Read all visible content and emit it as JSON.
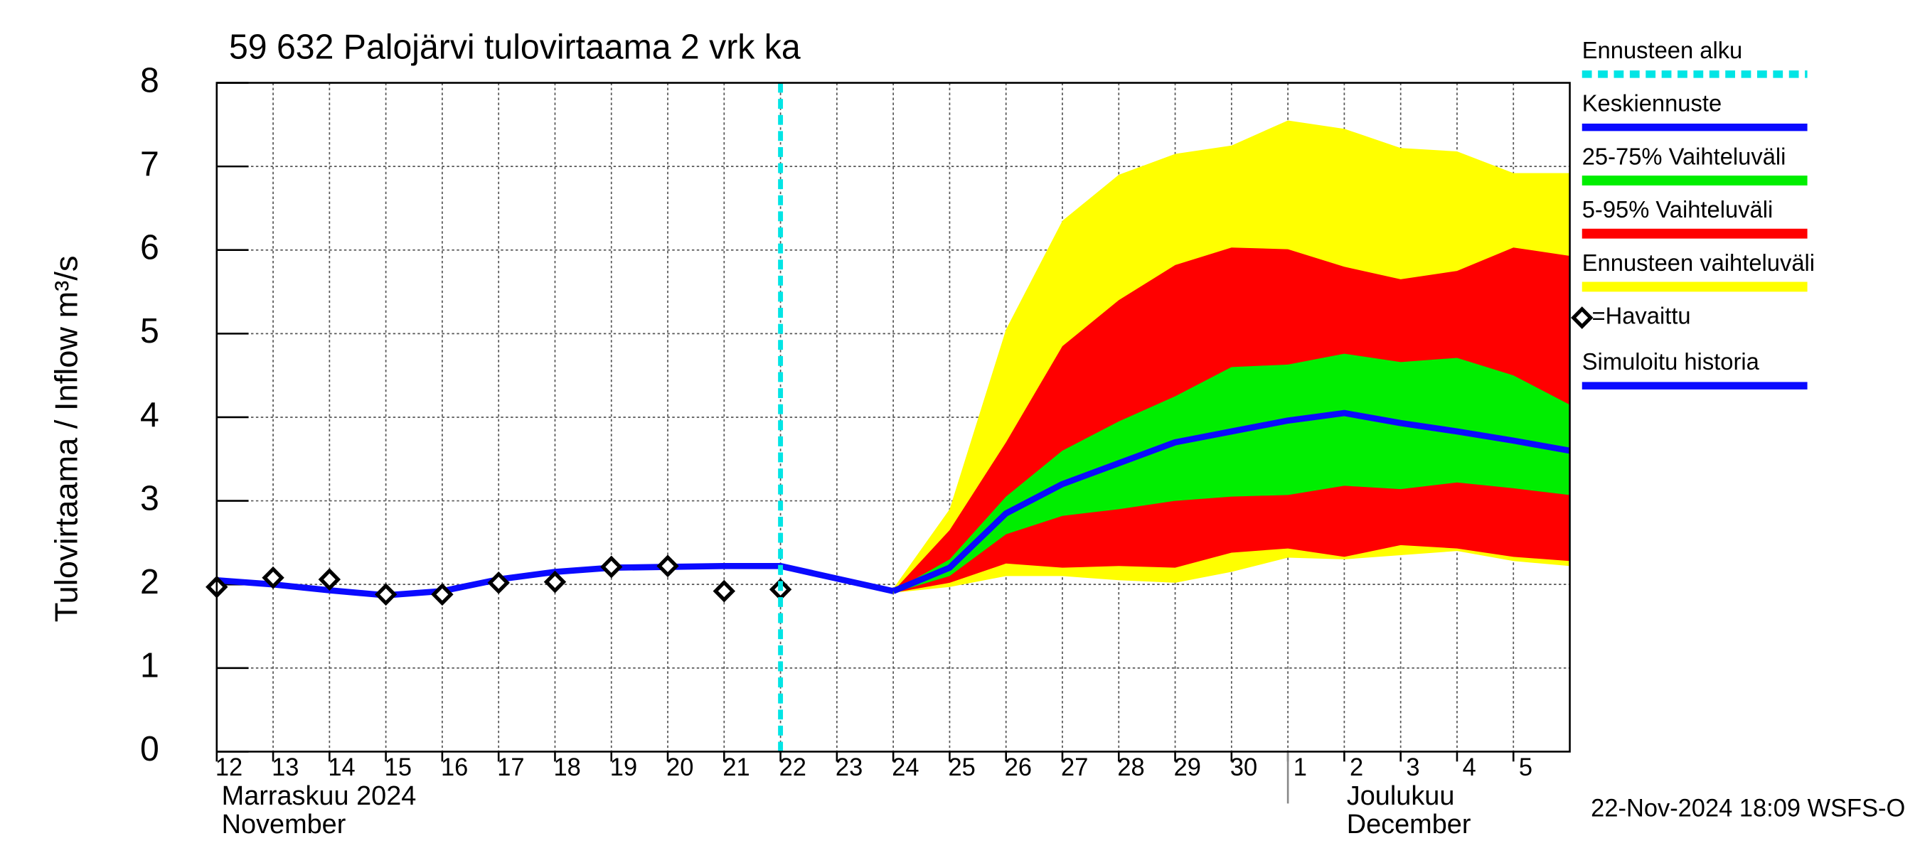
{
  "chart_data": {
    "type": "band-forecast",
    "title": "59 632 Palojärvi tulovirtaama 2 vrk ka",
    "y_label": "Tulovirtaama / Inflow   m³/s",
    "timestamp": "22-Nov-2024 18:09 WSFS-O",
    "x": [
      0,
      1,
      2,
      3,
      4,
      5,
      6,
      7,
      8,
      9,
      10,
      11,
      12,
      13,
      14,
      15,
      16,
      17,
      18,
      19,
      20,
      21,
      22,
      23,
      24
    ],
    "xlim": [
      0,
      24
    ],
    "xticks": [
      {
        "value": 0,
        "label": "12"
      },
      {
        "value": 1,
        "label": "13"
      },
      {
        "value": 2,
        "label": "14"
      },
      {
        "value": 3,
        "label": "15"
      },
      {
        "value": 4,
        "label": "16"
      },
      {
        "value": 5,
        "label": "17"
      },
      {
        "value": 6,
        "label": "18"
      },
      {
        "value": 7,
        "label": "19"
      },
      {
        "value": 8,
        "label": "20"
      },
      {
        "value": 9,
        "label": "21"
      },
      {
        "value": 10,
        "label": "22"
      },
      {
        "value": 11,
        "label": "23"
      },
      {
        "value": 12,
        "label": "24"
      },
      {
        "value": 13,
        "label": "25"
      },
      {
        "value": 14,
        "label": "26"
      },
      {
        "value": 15,
        "label": "27"
      },
      {
        "value": 16,
        "label": "28"
      },
      {
        "value": 17,
        "label": "29"
      },
      {
        "value": 18,
        "label": "30"
      },
      {
        "value": 19,
        "label": "1"
      },
      {
        "value": 20,
        "label": "2"
      },
      {
        "value": 21,
        "label": "3"
      },
      {
        "value": 22,
        "label": "4"
      },
      {
        "value": 23,
        "label": "5"
      }
    ],
    "months": [
      {
        "label": "Marraskuu 2024",
        "sublabel": "November",
        "x": 0
      },
      {
        "label": "Joulukuu",
        "sublabel": "December",
        "x": 19
      }
    ],
    "ylim": [
      0,
      8
    ],
    "yticks": [
      0,
      1,
      2,
      3,
      4,
      5,
      6,
      7,
      8
    ],
    "grid": true,
    "forecast_start": {
      "name": "Ennusteen alku",
      "x": 10,
      "color": "#00e5e5"
    },
    "series": [
      {
        "name": "Keskiennuste",
        "kind": "line",
        "color": "#0a0aff",
        "values": [
          null,
          null,
          null,
          null,
          null,
          null,
          null,
          null,
          null,
          null,
          null,
          null,
          1.92,
          2.2,
          2.85,
          3.2,
          3.45,
          3.7,
          3.83,
          3.96,
          4.05,
          3.93,
          3.83,
          3.72,
          3.6
        ]
      },
      {
        "name": "25-75% Vaihteluväli",
        "kind": "band",
        "color": "#00ee00",
        "lower": [
          null,
          null,
          null,
          null,
          null,
          null,
          null,
          null,
          null,
          null,
          null,
          null,
          1.9,
          2.1,
          2.6,
          2.82,
          2.9,
          3.0,
          3.05,
          3.07,
          3.18,
          3.14,
          3.22,
          3.15,
          3.07
        ],
        "upper": [
          null,
          null,
          null,
          null,
          null,
          null,
          null,
          null,
          null,
          null,
          null,
          null,
          1.92,
          2.3,
          3.05,
          3.6,
          3.95,
          4.25,
          4.6,
          4.63,
          4.76,
          4.66,
          4.71,
          4.5,
          4.15
        ]
      },
      {
        "name": "5-95% Vaihteluväli",
        "kind": "band",
        "color": "#ff0000",
        "lower": [
          null,
          null,
          null,
          null,
          null,
          null,
          null,
          null,
          null,
          null,
          null,
          null,
          1.9,
          2.02,
          2.25,
          2.2,
          2.22,
          2.2,
          2.38,
          2.43,
          2.33,
          2.47,
          2.43,
          2.33,
          2.28
        ],
        "upper": [
          null,
          null,
          null,
          null,
          null,
          null,
          null,
          null,
          null,
          null,
          null,
          null,
          1.92,
          2.65,
          3.7,
          4.85,
          5.4,
          5.82,
          6.03,
          6.01,
          5.8,
          5.65,
          5.75,
          6.03,
          5.93
        ]
      },
      {
        "name": "Ennusteen vaihteluväli",
        "kind": "band",
        "color": "#ffff00",
        "lower": [
          null,
          null,
          null,
          null,
          null,
          null,
          null,
          null,
          null,
          null,
          null,
          null,
          1.9,
          1.97,
          2.1,
          2.1,
          2.05,
          2.02,
          2.15,
          2.32,
          2.3,
          2.35,
          2.4,
          2.28,
          2.22
        ],
        "upper": [
          null,
          null,
          null,
          null,
          null,
          null,
          null,
          null,
          null,
          null,
          null,
          null,
          1.95,
          2.9,
          5.05,
          6.35,
          6.9,
          7.15,
          7.25,
          7.55,
          7.45,
          7.22,
          7.18,
          6.92,
          6.92
        ]
      },
      {
        "name": "=Havaittu",
        "kind": "marker",
        "color": "#000000",
        "values": [
          1.97,
          2.08,
          2.06,
          1.88,
          1.88,
          2.02,
          2.03,
          2.21,
          2.22,
          1.92,
          1.94,
          null,
          null,
          null,
          null,
          null,
          null,
          null,
          null,
          null,
          null,
          null,
          null,
          null,
          null
        ]
      },
      {
        "name": "Simuloitu historia",
        "kind": "line",
        "color": "#0a0aff",
        "values": [
          2.05,
          2.0,
          1.93,
          1.87,
          1.92,
          2.06,
          2.15,
          2.2,
          2.21,
          2.22,
          2.22,
          2.07,
          1.92,
          null,
          null,
          null,
          null,
          null,
          null,
          null,
          null,
          null,
          null,
          null,
          null
        ]
      }
    ]
  }
}
